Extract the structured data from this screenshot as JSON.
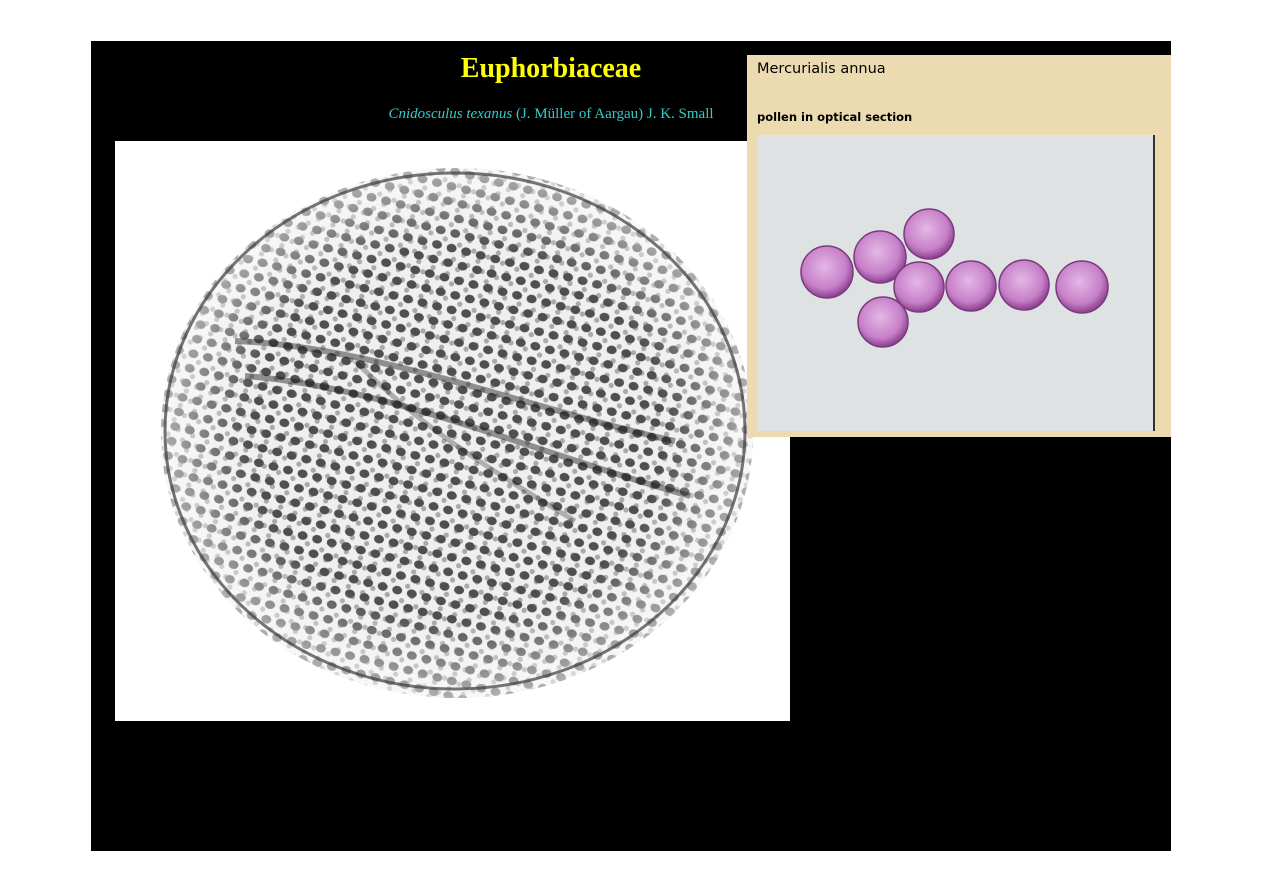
{
  "slide": {
    "title": "Euphorbiaceae",
    "subtitle": {
      "genus_species": "Cnidosculus texanus",
      "authority": " (J. Müller of Aargau) J. K. Small"
    }
  },
  "inset": {
    "species": "Mercurialis annua",
    "caption": "pollen in optical section"
  },
  "colors": {
    "slide_background": "#000000",
    "title": "#ffff00",
    "subtitle": "#33cccc",
    "inset_background": "#ecdbb0",
    "pollen_grains": "#c77fc8"
  }
}
